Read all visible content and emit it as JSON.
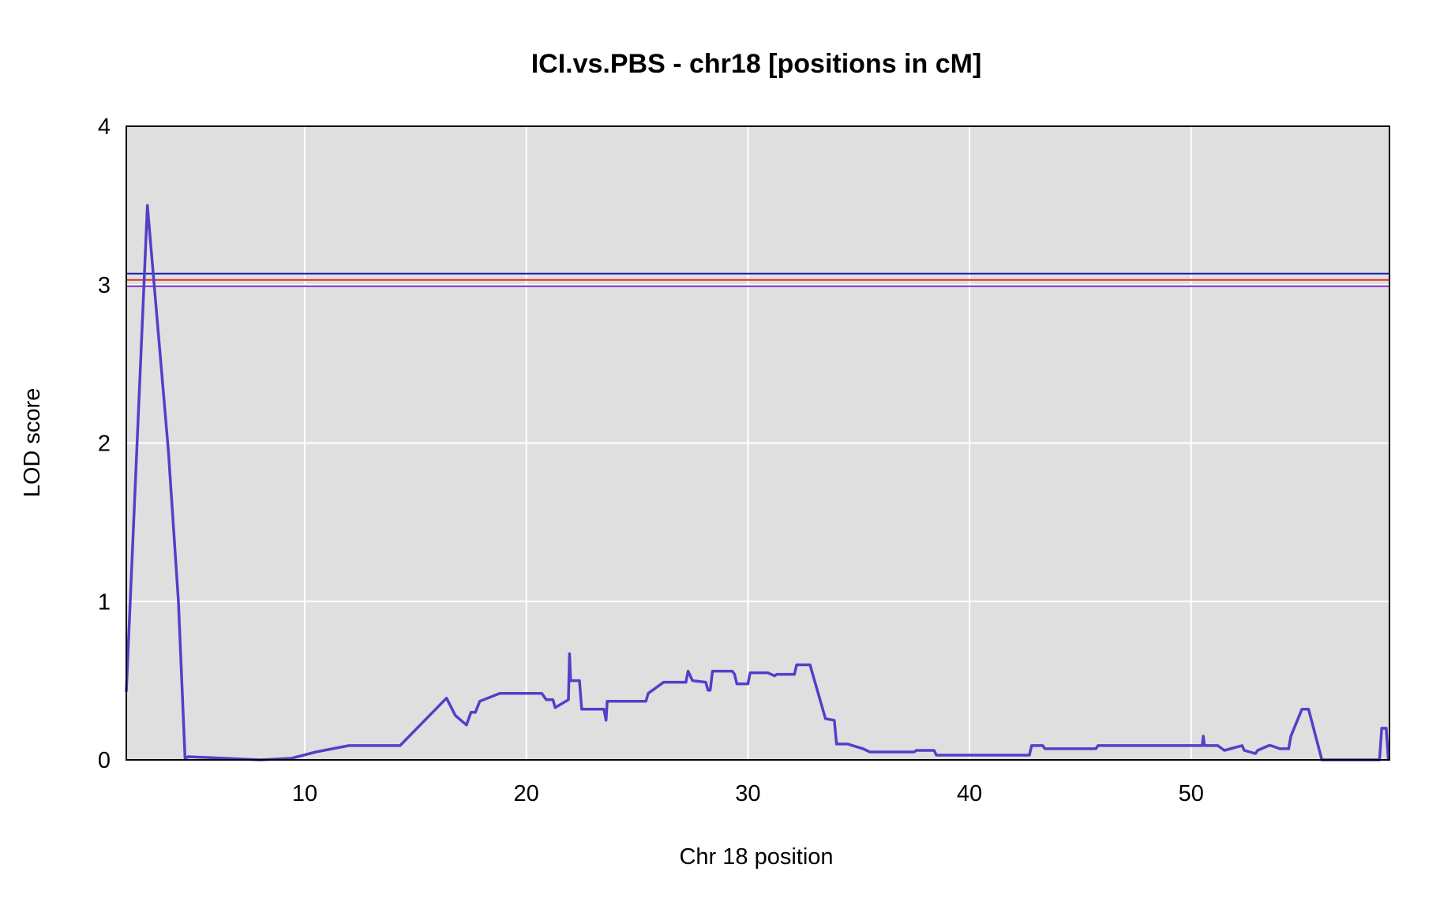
{
  "chart_data": {
    "type": "line",
    "title": "ICI.vs.PBS - chr18 [positions in cM]",
    "xlabel": "Chr 18 position",
    "ylabel": "LOD score",
    "xlim": [
      1.95,
      58.95
    ],
    "ylim": [
      0,
      4
    ],
    "xticks": [
      10,
      20,
      30,
      40,
      50
    ],
    "yticks": [
      0,
      1,
      2,
      3,
      4
    ],
    "grid": true,
    "background_color": "#dfdfdf",
    "grid_color": "#ffffff",
    "thresholds": [
      {
        "value": 3.07,
        "color": "#1a1ab5"
      },
      {
        "value": 3.03,
        "color": "#e0302a"
      },
      {
        "value": 2.99,
        "color": "#7a2fc9"
      }
    ],
    "series": [
      {
        "color": "#5140c8",
        "x": [
          1.95,
          2.9,
          3.85,
          4.3,
          4.6,
          4.75,
          8.0,
          9.4,
          10.5,
          12.0,
          14.3,
          16.4,
          16.8,
          17.3,
          17.5,
          17.7,
          17.9,
          18.8,
          20.7,
          20.9,
          21.2,
          21.3,
          21.9,
          21.95,
          22.0,
          22.4,
          22.5,
          23.5,
          23.6,
          23.65,
          25.4,
          25.5,
          26.2,
          27.2,
          27.3,
          27.5,
          28.1,
          28.2,
          28.3,
          28.4,
          29.3,
          29.4,
          29.5,
          30.0,
          30.1,
          30.9,
          31.2,
          31.3,
          32.1,
          32.2,
          32.8,
          33.5,
          33.9,
          34.0,
          34.5,
          35.2,
          35.5,
          37.5,
          37.6,
          38.4,
          38.5,
          42.7,
          42.8,
          43.3,
          43.4,
          45.7,
          45.8,
          50.5,
          50.55,
          50.6,
          50.65,
          51.2,
          51.5,
          52.3,
          52.4,
          52.9,
          53.0,
          53.5,
          53.6,
          54.0,
          54.1,
          54.4,
          54.5,
          55.0,
          55.3,
          55.9,
          58.5,
          58.6,
          58.8,
          58.9
        ],
        "y": [
          0.43,
          3.5,
          1.95,
          1.0,
          0.01,
          0.02,
          0.0,
          0.01,
          0.05,
          0.09,
          0.09,
          0.39,
          0.28,
          0.22,
          0.3,
          0.3,
          0.37,
          0.42,
          0.42,
          0.38,
          0.38,
          0.33,
          0.38,
          0.67,
          0.5,
          0.5,
          0.32,
          0.32,
          0.25,
          0.37,
          0.37,
          0.42,
          0.49,
          0.49,
          0.56,
          0.5,
          0.49,
          0.44,
          0.44,
          0.56,
          0.56,
          0.54,
          0.48,
          0.48,
          0.55,
          0.55,
          0.53,
          0.54,
          0.54,
          0.6,
          0.6,
          0.26,
          0.25,
          0.1,
          0.1,
          0.07,
          0.05,
          0.05,
          0.06,
          0.06,
          0.03,
          0.03,
          0.09,
          0.09,
          0.07,
          0.07,
          0.09,
          0.09,
          0.15,
          0.09,
          0.09,
          0.09,
          0.06,
          0.09,
          0.06,
          0.04,
          0.06,
          0.09,
          0.09,
          0.07,
          0.07,
          0.07,
          0.15,
          0.32,
          0.32,
          0.0,
          0.0,
          0.2,
          0.2,
          0.0
        ]
      }
    ]
  }
}
